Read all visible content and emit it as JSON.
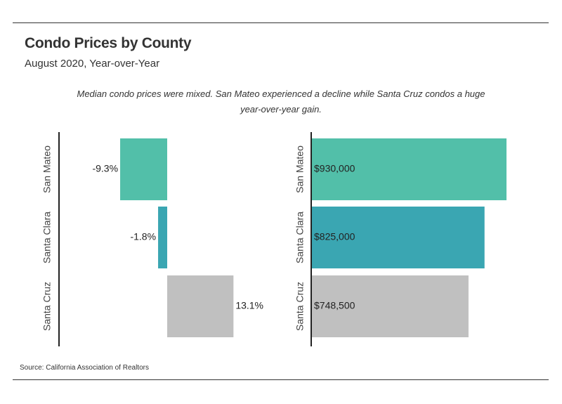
{
  "title": "Condo Prices by County",
  "subtitle": "August 2020, Year-over-Year",
  "note": "Median condo prices were mixed. San Mateo experienced a decline while Santa Cruz condos a huge year-over-year gain.",
  "source": "Source:  California Association of Realtors",
  "chart_data": [
    {
      "type": "bar",
      "orientation": "horizontal",
      "categories": [
        "San Mateo",
        "Santa Clara",
        "Santa Cruz"
      ],
      "values": [
        -9.3,
        -1.8,
        13.1
      ],
      "labels": [
        "-9.3%",
        "-1.8%",
        "13.1%"
      ],
      "unit": "%",
      "xlim": [
        -22,
        22
      ],
      "colors": [
        "#52bfa9",
        "#3aa6b2",
        "#c0c0c0"
      ]
    },
    {
      "type": "bar",
      "orientation": "horizontal",
      "categories": [
        "San Mateo",
        "Santa Clara",
        "Santa Cruz"
      ],
      "values": [
        930000,
        825000,
        748500
      ],
      "labels": [
        "$930,000",
        "$825,000",
        "$748,500"
      ],
      "unit": "USD",
      "xlim": [
        0,
        1000000
      ],
      "colors": [
        "#52bfa9",
        "#3aa6b2",
        "#c0c0c0"
      ]
    }
  ]
}
